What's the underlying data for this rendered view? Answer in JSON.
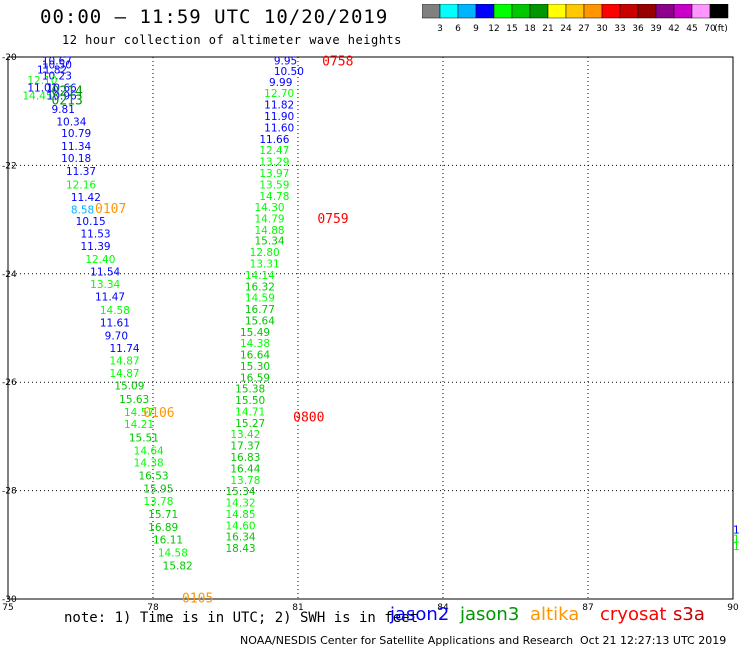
{
  "title": "00:00 – 11:59 UTC 10/20/2019",
  "subtitle": "12 hour collection of altimeter wave heights",
  "scale": {
    "colors": [
      "#808080",
      "#00ffff",
      "#00b4ff",
      "#0000ff",
      "#00ff00",
      "#00c800",
      "#009600",
      "#ffff00",
      "#ffc800",
      "#ff9600",
      "#ff0000",
      "#c80000",
      "#960000",
      "#8c008c",
      "#c800c8",
      "#ff96ff",
      "#000000"
    ],
    "labels": [
      "3",
      "6",
      "9",
      "12",
      "15",
      "18",
      "21",
      "24",
      "27",
      "30",
      "33",
      "36",
      "39",
      "42",
      "45",
      "70",
      "(ft)"
    ]
  },
  "note": "note:  1) Time is in UTC;  2) SWH is in feet",
  "legend": [
    {
      "name": "jason2",
      "color": "#0000ff"
    },
    {
      "name": "jason3",
      "color": "#009600"
    },
    {
      "name": "altika",
      "color": "#ff9600"
    },
    {
      "name": "cryosat",
      "color": "#ff0000"
    },
    {
      "name": "s3a",
      "color": "#c80000"
    }
  ],
  "credit": "NOAA/NESDIS Center for Satellite Applications and Research",
  "timestamp": "Oct 21 12:27:13 UTC 2019",
  "chart_data": {
    "type": "scatter",
    "x_ticks": [
      "75",
      "78",
      "81",
      "84",
      "87",
      "90"
    ],
    "y_ticks": [
      "-20",
      "-22",
      "-24",
      "-26",
      "-28",
      "-30"
    ],
    "xlim": [
      75,
      90
    ],
    "ylim": [
      -30,
      -20
    ],
    "grid": true,
    "times": [
      {
        "text": "0214",
        "x": 75.9,
        "y": -20.62,
        "color": "#009600"
      },
      {
        "text": "0213",
        "x": 75.9,
        "y": -20.78,
        "color": "#009600"
      },
      {
        "text": "0107",
        "x": 76.8,
        "y": -22.79,
        "color": "#ff9600"
      },
      {
        "text": "0106",
        "x": 77.8,
        "y": -26.55,
        "color": "#ff9600"
      },
      {
        "text": "0105",
        "x": 78.6,
        "y": -29.97,
        "color": "#ff9600"
      },
      {
        "text": "0758",
        "x": 81.5,
        "y": -20.06,
        "color": "#ff0000"
      },
      {
        "text": "0759",
        "x": 81.4,
        "y": -22.97,
        "color": "#ff0000"
      },
      {
        "text": "0800",
        "x": 80.9,
        "y": -26.63,
        "color": "#ff0000"
      }
    ],
    "points": [
      {
        "v": "10.67",
        "x": 75.7,
        "y": -20.06,
        "c": "#0000ff"
      },
      {
        "v": "10.50",
        "x": 75.7,
        "y": -20.14,
        "c": "#0000ff"
      },
      {
        "v": "11.82",
        "x": 75.6,
        "y": -20.23,
        "c": "#0000ff"
      },
      {
        "v": "10.23",
        "x": 75.7,
        "y": -20.34,
        "c": "#0000ff"
      },
      {
        "v": "12.10",
        "x": 75.4,
        "y": -20.42,
        "c": "#00ff00"
      },
      {
        "v": "11.01",
        "x": 75.4,
        "y": -20.56,
        "c": "#0000ff"
      },
      {
        "v": "10.66",
        "x": 75.8,
        "y": -20.56,
        "c": "#0000ff"
      },
      {
        "v": "14.45",
        "x": 75.3,
        "y": -20.71,
        "c": "#00ff00"
      },
      {
        "v": "10.96",
        "x": 75.8,
        "y": -20.71,
        "c": "#0000ff"
      },
      {
        "v": "9.81",
        "x": 75.9,
        "y": -20.96,
        "c": "#0000ff"
      },
      {
        "v": "10.34",
        "x": 76.0,
        "y": -21.19,
        "c": "#0000ff"
      },
      {
        "v": "10.79",
        "x": 76.1,
        "y": -21.4,
        "c": "#0000ff"
      },
      {
        "v": "11.34",
        "x": 76.1,
        "y": -21.64,
        "c": "#0000ff"
      },
      {
        "v": "10.18",
        "x": 76.1,
        "y": -21.86,
        "c": "#0000ff"
      },
      {
        "v": "11.37",
        "x": 76.2,
        "y": -22.1,
        "c": "#0000ff"
      },
      {
        "v": "12.16",
        "x": 76.2,
        "y": -22.35,
        "c": "#00ff00"
      },
      {
        "v": "11.42",
        "x": 76.3,
        "y": -22.58,
        "c": "#0000ff"
      },
      {
        "v": "8.58",
        "x": 76.3,
        "y": -22.81,
        "c": "#00b4ff"
      },
      {
        "v": "10.15",
        "x": 76.4,
        "y": -23.03,
        "c": "#0000ff"
      },
      {
        "v": "11.53",
        "x": 76.5,
        "y": -23.26,
        "c": "#0000ff"
      },
      {
        "v": "11.39",
        "x": 76.5,
        "y": -23.49,
        "c": "#0000ff"
      },
      {
        "v": "12.40",
        "x": 76.6,
        "y": -23.73,
        "c": "#00ff00"
      },
      {
        "v": "11.54",
        "x": 76.7,
        "y": -23.96,
        "c": "#0000ff"
      },
      {
        "v": "13.34",
        "x": 76.7,
        "y": -24.19,
        "c": "#00ff00"
      },
      {
        "v": "11.47",
        "x": 76.8,
        "y": -24.42,
        "c": "#0000ff"
      },
      {
        "v": "14.58",
        "x": 76.9,
        "y": -24.67,
        "c": "#00ff00"
      },
      {
        "v": "11.61",
        "x": 76.9,
        "y": -24.9,
        "c": "#0000ff"
      },
      {
        "v": "9.70",
        "x": 77.0,
        "y": -25.14,
        "c": "#0000ff"
      },
      {
        "v": "11.74",
        "x": 77.1,
        "y": -25.37,
        "c": "#0000ff"
      },
      {
        "v": "14.87",
        "x": 77.1,
        "y": -25.6,
        "c": "#00ff00"
      },
      {
        "v": "14.87",
        "x": 77.1,
        "y": -25.83,
        "c": "#00ff00"
      },
      {
        "v": "15.09",
        "x": 77.2,
        "y": -26.06,
        "c": "#00c800"
      },
      {
        "v": "15.63",
        "x": 77.3,
        "y": -26.31,
        "c": "#00c800"
      },
      {
        "v": "14.57",
        "x": 77.4,
        "y": -26.55,
        "c": "#00ff00"
      },
      {
        "v": "14.21",
        "x": 77.4,
        "y": -26.77,
        "c": "#00ff00"
      },
      {
        "v": "15.51",
        "x": 77.5,
        "y": -27.02,
        "c": "#00c800"
      },
      {
        "v": "14.64",
        "x": 77.6,
        "y": -27.26,
        "c": "#00ff00"
      },
      {
        "v": "14.38",
        "x": 77.6,
        "y": -27.48,
        "c": "#00ff00"
      },
      {
        "v": "16.53",
        "x": 77.7,
        "y": -27.72,
        "c": "#00c800"
      },
      {
        "v": "15.95",
        "x": 77.8,
        "y": -27.96,
        "c": "#00c800"
      },
      {
        "v": "13.78",
        "x": 77.8,
        "y": -28.19,
        "c": "#00ff00"
      },
      {
        "v": "15.71",
        "x": 77.9,
        "y": -28.43,
        "c": "#00c800"
      },
      {
        "v": "16.89",
        "x": 77.9,
        "y": -28.67,
        "c": "#00c800"
      },
      {
        "v": "16.11",
        "x": 78.0,
        "y": -28.9,
        "c": "#00c800"
      },
      {
        "v": "14.58",
        "x": 78.1,
        "y": -29.14,
        "c": "#00ff00"
      },
      {
        "v": "15.82",
        "x": 78.2,
        "y": -29.38,
        "c": "#00c800"
      },
      {
        "v": "9.95",
        "x": 80.5,
        "y": -20.06,
        "c": "#0000ff"
      },
      {
        "v": "10.50",
        "x": 80.5,
        "y": -20.26,
        "c": "#0000ff"
      },
      {
        "v": "9.99",
        "x": 80.4,
        "y": -20.46,
        "c": "#0000ff"
      },
      {
        "v": "12.70",
        "x": 80.3,
        "y": -20.66,
        "c": "#00ff00"
      },
      {
        "v": "11.82",
        "x": 80.3,
        "y": -20.88,
        "c": "#0000ff"
      },
      {
        "v": "11.90",
        "x": 80.3,
        "y": -21.09,
        "c": "#0000ff"
      },
      {
        "v": "11.60",
        "x": 80.3,
        "y": -21.3,
        "c": "#0000ff"
      },
      {
        "v": "11.66",
        "x": 80.2,
        "y": -21.51,
        "c": "#0000ff"
      },
      {
        "v": "12.47",
        "x": 80.2,
        "y": -21.72,
        "c": "#00ff00"
      },
      {
        "v": "13.29",
        "x": 80.2,
        "y": -21.93,
        "c": "#00ff00"
      },
      {
        "v": "13.97",
        "x": 80.2,
        "y": -22.14,
        "c": "#00ff00"
      },
      {
        "v": "13.59",
        "x": 80.2,
        "y": -22.35,
        "c": "#00ff00"
      },
      {
        "v": "14.78",
        "x": 80.2,
        "y": -22.56,
        "c": "#00ff00"
      },
      {
        "v": "14.30",
        "x": 80.1,
        "y": -22.77,
        "c": "#00ff00"
      },
      {
        "v": "14.79",
        "x": 80.1,
        "y": -22.98,
        "c": "#00ff00"
      },
      {
        "v": "14.88",
        "x": 80.1,
        "y": -23.19,
        "c": "#00ff00"
      },
      {
        "v": "15.34",
        "x": 80.1,
        "y": -23.39,
        "c": "#00c800"
      },
      {
        "v": "12.80",
        "x": 80.0,
        "y": -23.6,
        "c": "#00ff00"
      },
      {
        "v": "13.31",
        "x": 80.0,
        "y": -23.81,
        "c": "#00ff00"
      },
      {
        "v": "14.14",
        "x": 79.9,
        "y": -24.02,
        "c": "#00ff00"
      },
      {
        "v": "16.32",
        "x": 79.9,
        "y": -24.23,
        "c": "#00c800"
      },
      {
        "v": "14.59",
        "x": 79.9,
        "y": -24.44,
        "c": "#00ff00"
      },
      {
        "v": "16.77",
        "x": 79.9,
        "y": -24.65,
        "c": "#00c800"
      },
      {
        "v": "15.64",
        "x": 79.9,
        "y": -24.86,
        "c": "#00c800"
      },
      {
        "v": "15.49",
        "x": 79.8,
        "y": -25.07,
        "c": "#00c800"
      },
      {
        "v": "14.38",
        "x": 79.8,
        "y": -25.28,
        "c": "#00ff00"
      },
      {
        "v": "16.64",
        "x": 79.8,
        "y": -25.49,
        "c": "#00c800"
      },
      {
        "v": "15.30",
        "x": 79.8,
        "y": -25.7,
        "c": "#00c800"
      },
      {
        "v": "16.59",
        "x": 79.8,
        "y": -25.91,
        "c": "#00c800"
      },
      {
        "v": "15.38",
        "x": 79.7,
        "y": -26.12,
        "c": "#00c800"
      },
      {
        "v": "15.50",
        "x": 79.7,
        "y": -26.33,
        "c": "#00c800"
      },
      {
        "v": "14.71",
        "x": 79.7,
        "y": -26.54,
        "c": "#00ff00"
      },
      {
        "v": "15.27",
        "x": 79.7,
        "y": -26.75,
        "c": "#00c800"
      },
      {
        "v": "13.42",
        "x": 79.6,
        "y": -26.96,
        "c": "#00ff00"
      },
      {
        "v": "17.37",
        "x": 79.6,
        "y": -27.17,
        "c": "#00c800"
      },
      {
        "v": "16.83",
        "x": 79.6,
        "y": -27.38,
        "c": "#00c800"
      },
      {
        "v": "16.44",
        "x": 79.6,
        "y": -27.59,
        "c": "#00c800"
      },
      {
        "v": "13.78",
        "x": 79.6,
        "y": -27.8,
        "c": "#00ff00"
      },
      {
        "v": "15.34",
        "x": 79.5,
        "y": -28.01,
        "c": "#00c800"
      },
      {
        "v": "14.32",
        "x": 79.5,
        "y": -28.22,
        "c": "#00ff00"
      },
      {
        "v": "14.85",
        "x": 79.5,
        "y": -28.43,
        "c": "#00ff00"
      },
      {
        "v": "14.60",
        "x": 79.5,
        "y": -28.64,
        "c": "#00ff00"
      },
      {
        "v": "16.34",
        "x": 79.5,
        "y": -28.85,
        "c": "#00c800"
      },
      {
        "v": "18.43",
        "x": 79.5,
        "y": -29.06,
        "c": "#00c800"
      },
      {
        "v": "1",
        "x": 90.0,
        "y": -28.72,
        "c": "#0000ff"
      },
      {
        "v": "1",
        "x": 90.0,
        "y": -28.88,
        "c": "#00ff00"
      },
      {
        "v": "1",
        "x": 90.0,
        "y": -29.02,
        "c": "#00ff00"
      }
    ]
  }
}
